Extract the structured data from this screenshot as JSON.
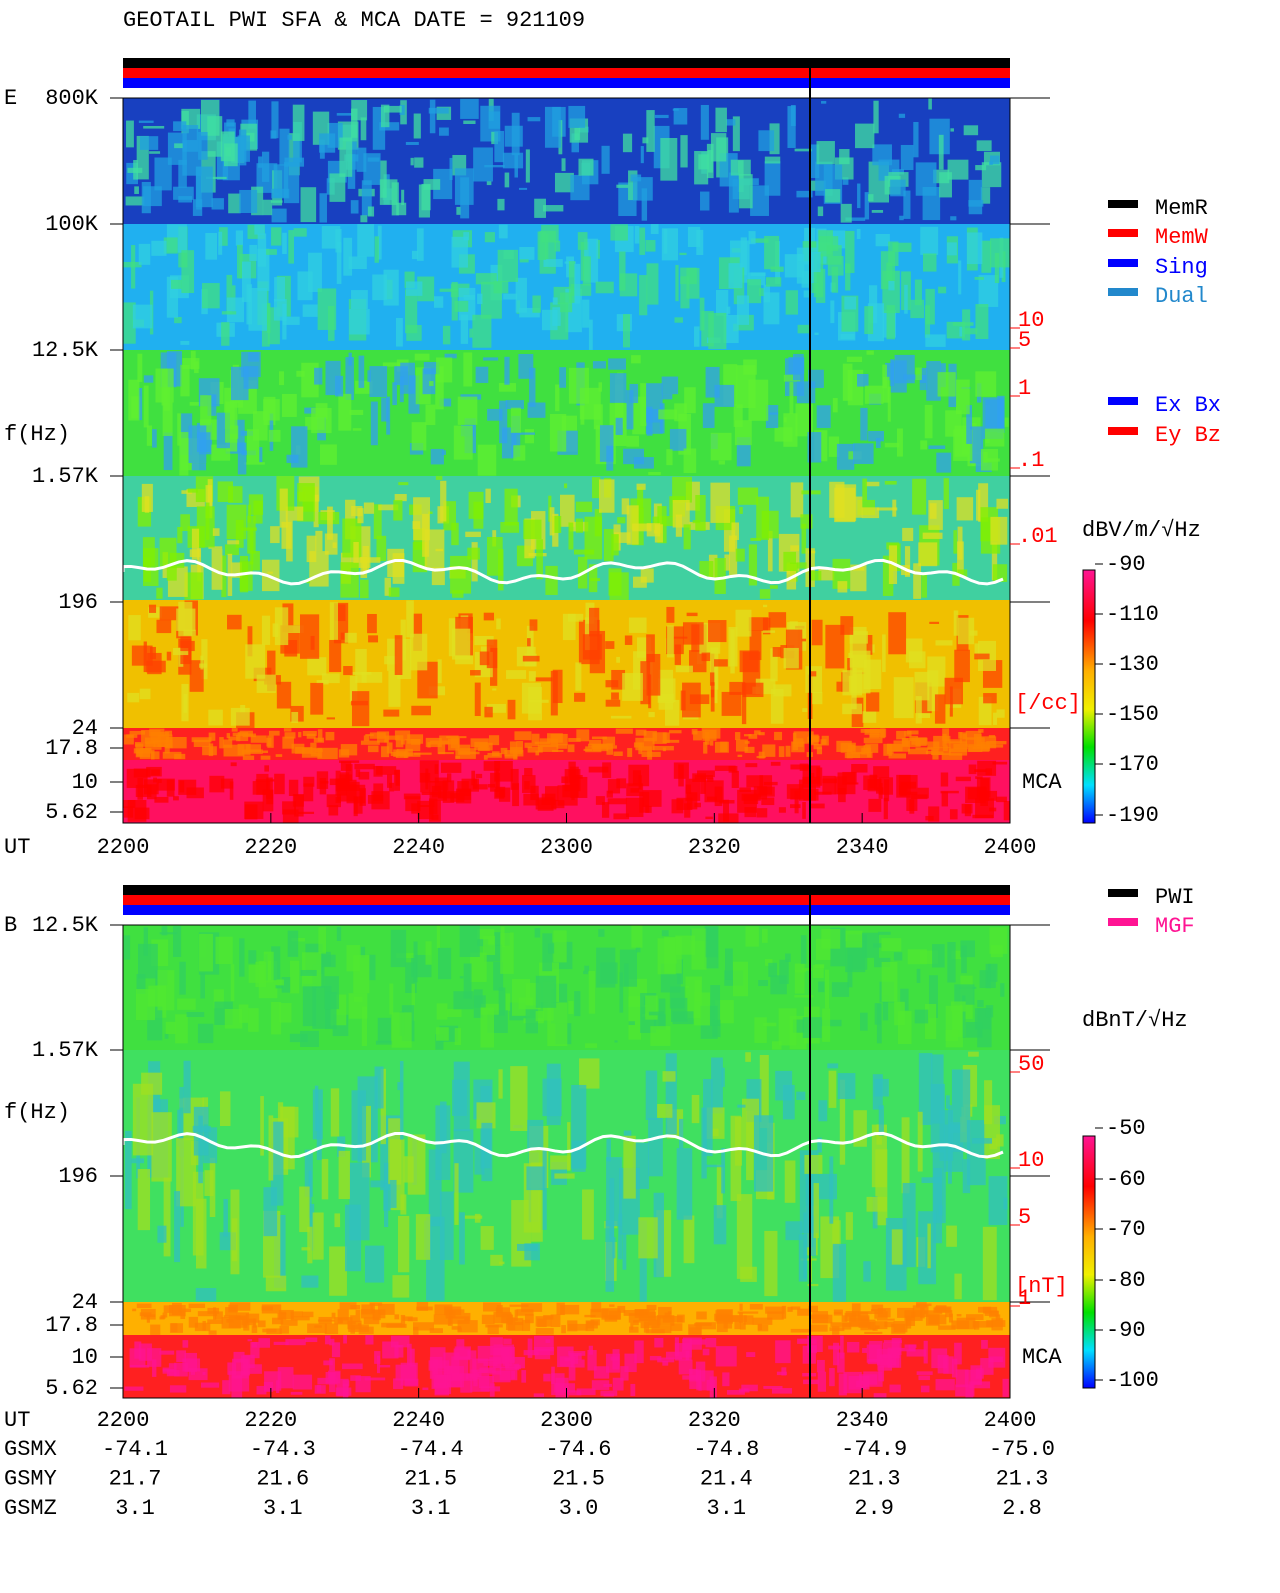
{
  "title": "GEOTAIL   PWI SFA & MCA   DATE = 921109",
  "panels": [
    {
      "component": "E",
      "ylabel": "f(Hz)",
      "yticks": [
        "800K",
        "100K",
        "12.5K",
        "1.57K",
        "196",
        "24",
        "17.8",
        "10",
        "5.62"
      ],
      "mca": "MCA",
      "xlabel": "UT",
      "xticks": [
        "2200",
        "2220",
        "2240",
        "2300",
        "2320",
        "2340",
        "2400"
      ],
      "scale_ticks": [
        "10",
        "5",
        "1",
        ".1",
        ".01"
      ],
      "scale_unit": "[/cc]",
      "colorbar_label": "dBV/m/√Hz",
      "colorbar_ticks": [
        -90,
        -110,
        -130,
        -150,
        -170,
        -190
      ],
      "legend": [
        {
          "label": "MemR",
          "color": "#000000"
        },
        {
          "label": "MemW",
          "color": "#ff0000"
        },
        {
          "label": "Sing",
          "color": "#0000ff"
        },
        {
          "label": "Dual",
          "color": "#2288cc"
        },
        {
          "label": "Ex Bx",
          "color": "#0000ff"
        },
        {
          "label": "Ey Bz",
          "color": "#ff0000"
        }
      ]
    },
    {
      "component": "B",
      "ylabel": "f(Hz)",
      "yticks": [
        "12.5K",
        "1.57K",
        "196",
        "24",
        "17.8",
        "10",
        "5.62"
      ],
      "mca": "MCA",
      "xlabel": "UT",
      "xticks": [
        "2200",
        "2220",
        "2240",
        "2300",
        "2320",
        "2340",
        "2400"
      ],
      "scale_ticks": [
        "50",
        "10",
        "5",
        "1"
      ],
      "scale_unit": "[nT]",
      "colorbar_label": "dBnT/√Hz",
      "colorbar_ticks": [
        -50,
        -60,
        -70,
        -80,
        -90,
        -100
      ],
      "legend": [
        {
          "label": "PWI",
          "color": "#000000"
        },
        {
          "label": "MGF",
          "color": "#ff1493"
        }
      ]
    }
  ],
  "orbit": [
    {
      "label": "GSMX",
      "values": [
        "-74.1",
        "-74.3",
        "-74.4",
        "-74.6",
        "-74.8",
        "-74.9",
        "-75.0"
      ]
    },
    {
      "label": "GSMY",
      "values": [
        "21.7",
        "21.6",
        "21.5",
        "21.5",
        "21.4",
        "21.3",
        "21.3"
      ]
    },
    {
      "label": "GSMZ",
      "values": [
        "3.1",
        "3.1",
        "3.1",
        "3.0",
        "3.1",
        "2.9",
        "2.8"
      ]
    }
  ]
}
